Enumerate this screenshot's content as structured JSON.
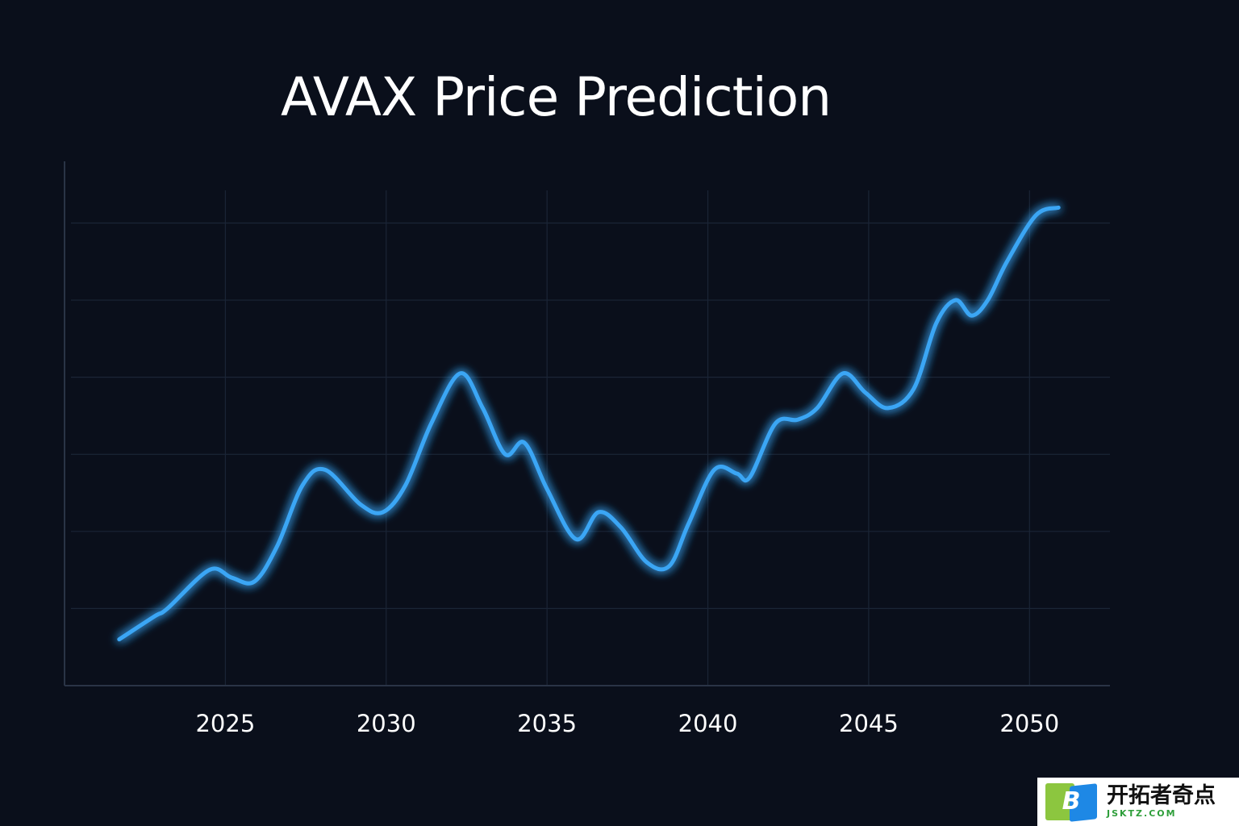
{
  "chart_data": {
    "type": "line",
    "title": "AVAX Price Prediction",
    "xlabel": "",
    "ylabel": "",
    "x_ticks": [
      "2025",
      "2030",
      "2035",
      "2040",
      "2045",
      "2050"
    ],
    "xlim": [
      2020,
      2052.5
    ],
    "ylim": [
      0,
      6.8
    ],
    "grid": true,
    "legend": "none",
    "series": [
      {
        "color": "#3aa6f5",
        "x": [
          2021.7,
          2022.8,
          2023.2,
          2024.5,
          2025.2,
          2025.9,
          2026.6,
          2027.4,
          2028.1,
          2029.2,
          2029.9,
          2030.6,
          2031.4,
          2032.3,
          2033.0,
          2033.7,
          2034.3,
          2035.0,
          2035.9,
          2036.6,
          2037.3,
          2038.1,
          2038.8,
          2039.4,
          2040.2,
          2040.9,
          2041.3,
          2042.1,
          2042.8,
          2043.4,
          2044.2,
          2044.9,
          2045.6,
          2046.4,
          2047.1,
          2047.7,
          2048.2,
          2048.7,
          2049.3,
          2050.2,
          2050.9
        ],
        "y": [
          0.6,
          0.9,
          1.0,
          1.5,
          1.4,
          1.35,
          1.8,
          2.6,
          2.8,
          2.35,
          2.25,
          2.6,
          3.4,
          4.05,
          3.6,
          3.0,
          3.15,
          2.55,
          1.9,
          2.25,
          2.05,
          1.6,
          1.55,
          2.1,
          2.8,
          2.75,
          2.7,
          3.4,
          3.45,
          3.6,
          4.05,
          3.8,
          3.6,
          3.85,
          4.7,
          5.0,
          4.8,
          5.0,
          5.5,
          6.1,
          6.2
        ]
      }
    ]
  },
  "watermark": {
    "logo_letter": "B",
    "text": "开拓者奇点",
    "url": "JSKTZ.COM"
  }
}
